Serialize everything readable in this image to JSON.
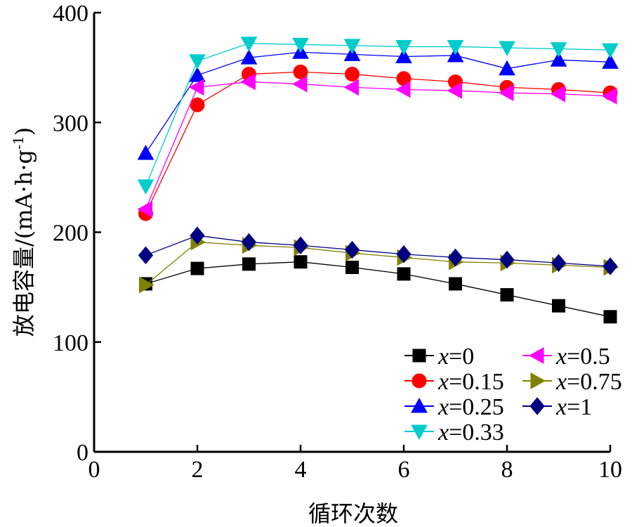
{
  "chart_data": {
    "type": "line",
    "xlabel": "循环次数",
    "ylabel": "放电容量/(mA·h·g",
    "ylabel_sup": "-1",
    "ylabel_close": ")",
    "xlim": [
      0,
      10
    ],
    "ylim": [
      0,
      400
    ],
    "xticks": [
      0,
      2,
      4,
      6,
      8,
      10
    ],
    "yticks": [
      0,
      100,
      200,
      300,
      400
    ],
    "legend_placement": "lower-right",
    "x": [
      1,
      2,
      3,
      4,
      5,
      6,
      7,
      8,
      9,
      10
    ],
    "series": [
      {
        "var": "x",
        "eq": "=0",
        "color": "#000000",
        "marker": "square",
        "values": [
          153,
          167,
          171,
          173,
          168,
          162,
          153,
          143,
          133,
          123
        ]
      },
      {
        "var": "x",
        "eq": "=0.15",
        "color": "#ff0000",
        "marker": "circle",
        "values": [
          217,
          316,
          344,
          346,
          344,
          340,
          337,
          332,
          330,
          327
        ]
      },
      {
        "var": "x",
        "eq": "=0.25",
        "color": "#0000ff",
        "marker": "triangle-up",
        "values": [
          272,
          343,
          359,
          364,
          362,
          360,
          361,
          349,
          357,
          355
        ]
      },
      {
        "var": "x",
        "eq": "=0.33",
        "color": "#00cccc",
        "marker": "triangle-down",
        "values": [
          242,
          356,
          372,
          371,
          370,
          369,
          369,
          368,
          367,
          366
        ]
      },
      {
        "var": "x",
        "eq": "=0.5",
        "color": "#ff00ff",
        "marker": "triangle-left",
        "values": [
          221,
          332,
          337,
          335,
          332,
          330,
          329,
          327,
          326,
          324
        ]
      },
      {
        "var": "x",
        "eq": "=0.75",
        "color": "#808000",
        "marker": "triangle-right",
        "values": [
          152,
          191,
          188,
          186,
          181,
          177,
          173,
          172,
          170,
          168
        ]
      },
      {
        "var": "x",
        "eq": "=1",
        "color": "#000080",
        "marker": "diamond",
        "values": [
          179,
          197,
          191,
          188,
          184,
          180,
          177,
          175,
          172,
          169
        ]
      }
    ]
  }
}
